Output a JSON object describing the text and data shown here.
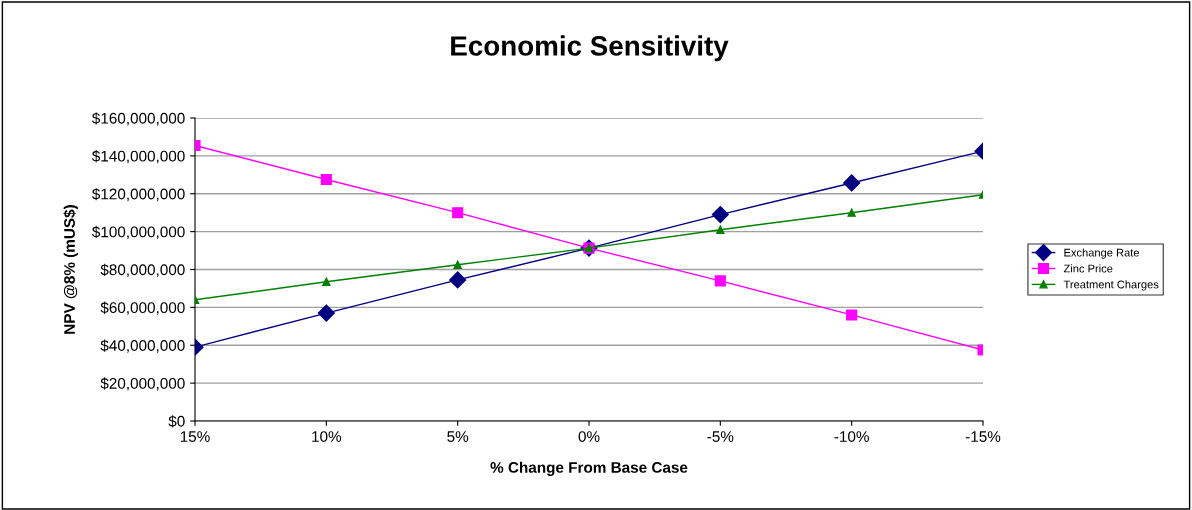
{
  "chart_data": {
    "type": "line",
    "title": "Economic Sensitivity",
    "xlabel": "% Change From Base Case",
    "ylabel": "NPV @8% (mUS$)",
    "categories": [
      "15%",
      "10%",
      "5%",
      "0%",
      "-5%",
      "-10%",
      "-15%"
    ],
    "series": [
      {
        "name": "Exchange Rate",
        "color": "#000080",
        "marker": "diamond",
        "values": [
          39000000,
          57000000,
          74500000,
          91300000,
          109000000,
          125700000,
          142500000
        ]
      },
      {
        "name": "Zinc Price",
        "color": "#ff00ff",
        "marker": "square",
        "values": [
          145500000,
          127500000,
          110000000,
          91300000,
          74000000,
          56000000,
          37500000
        ]
      },
      {
        "name": "Treatment Charges",
        "color": "#008000",
        "marker": "triangle",
        "values": [
          64000000,
          73500000,
          82500000,
          91300000,
          101000000,
          110000000,
          119500000
        ]
      }
    ],
    "ylim": [
      0,
      160000000
    ],
    "yticks": [
      {
        "value": 0,
        "label": "$0"
      },
      {
        "value": 20000000,
        "label": "$20,000,000"
      },
      {
        "value": 40000000,
        "label": "$40,000,000"
      },
      {
        "value": 60000000,
        "label": "$60,000,000"
      },
      {
        "value": 80000000,
        "label": "$80,000,000"
      },
      {
        "value": 100000000,
        "label": "$100,000,000"
      },
      {
        "value": 120000000,
        "label": "$120,000,000"
      },
      {
        "value": 140000000,
        "label": "$140,000,000"
      },
      {
        "value": 160000000,
        "label": "$160,000,000"
      }
    ],
    "grid": "y",
    "legend": "right",
    "line_style": "solid"
  }
}
